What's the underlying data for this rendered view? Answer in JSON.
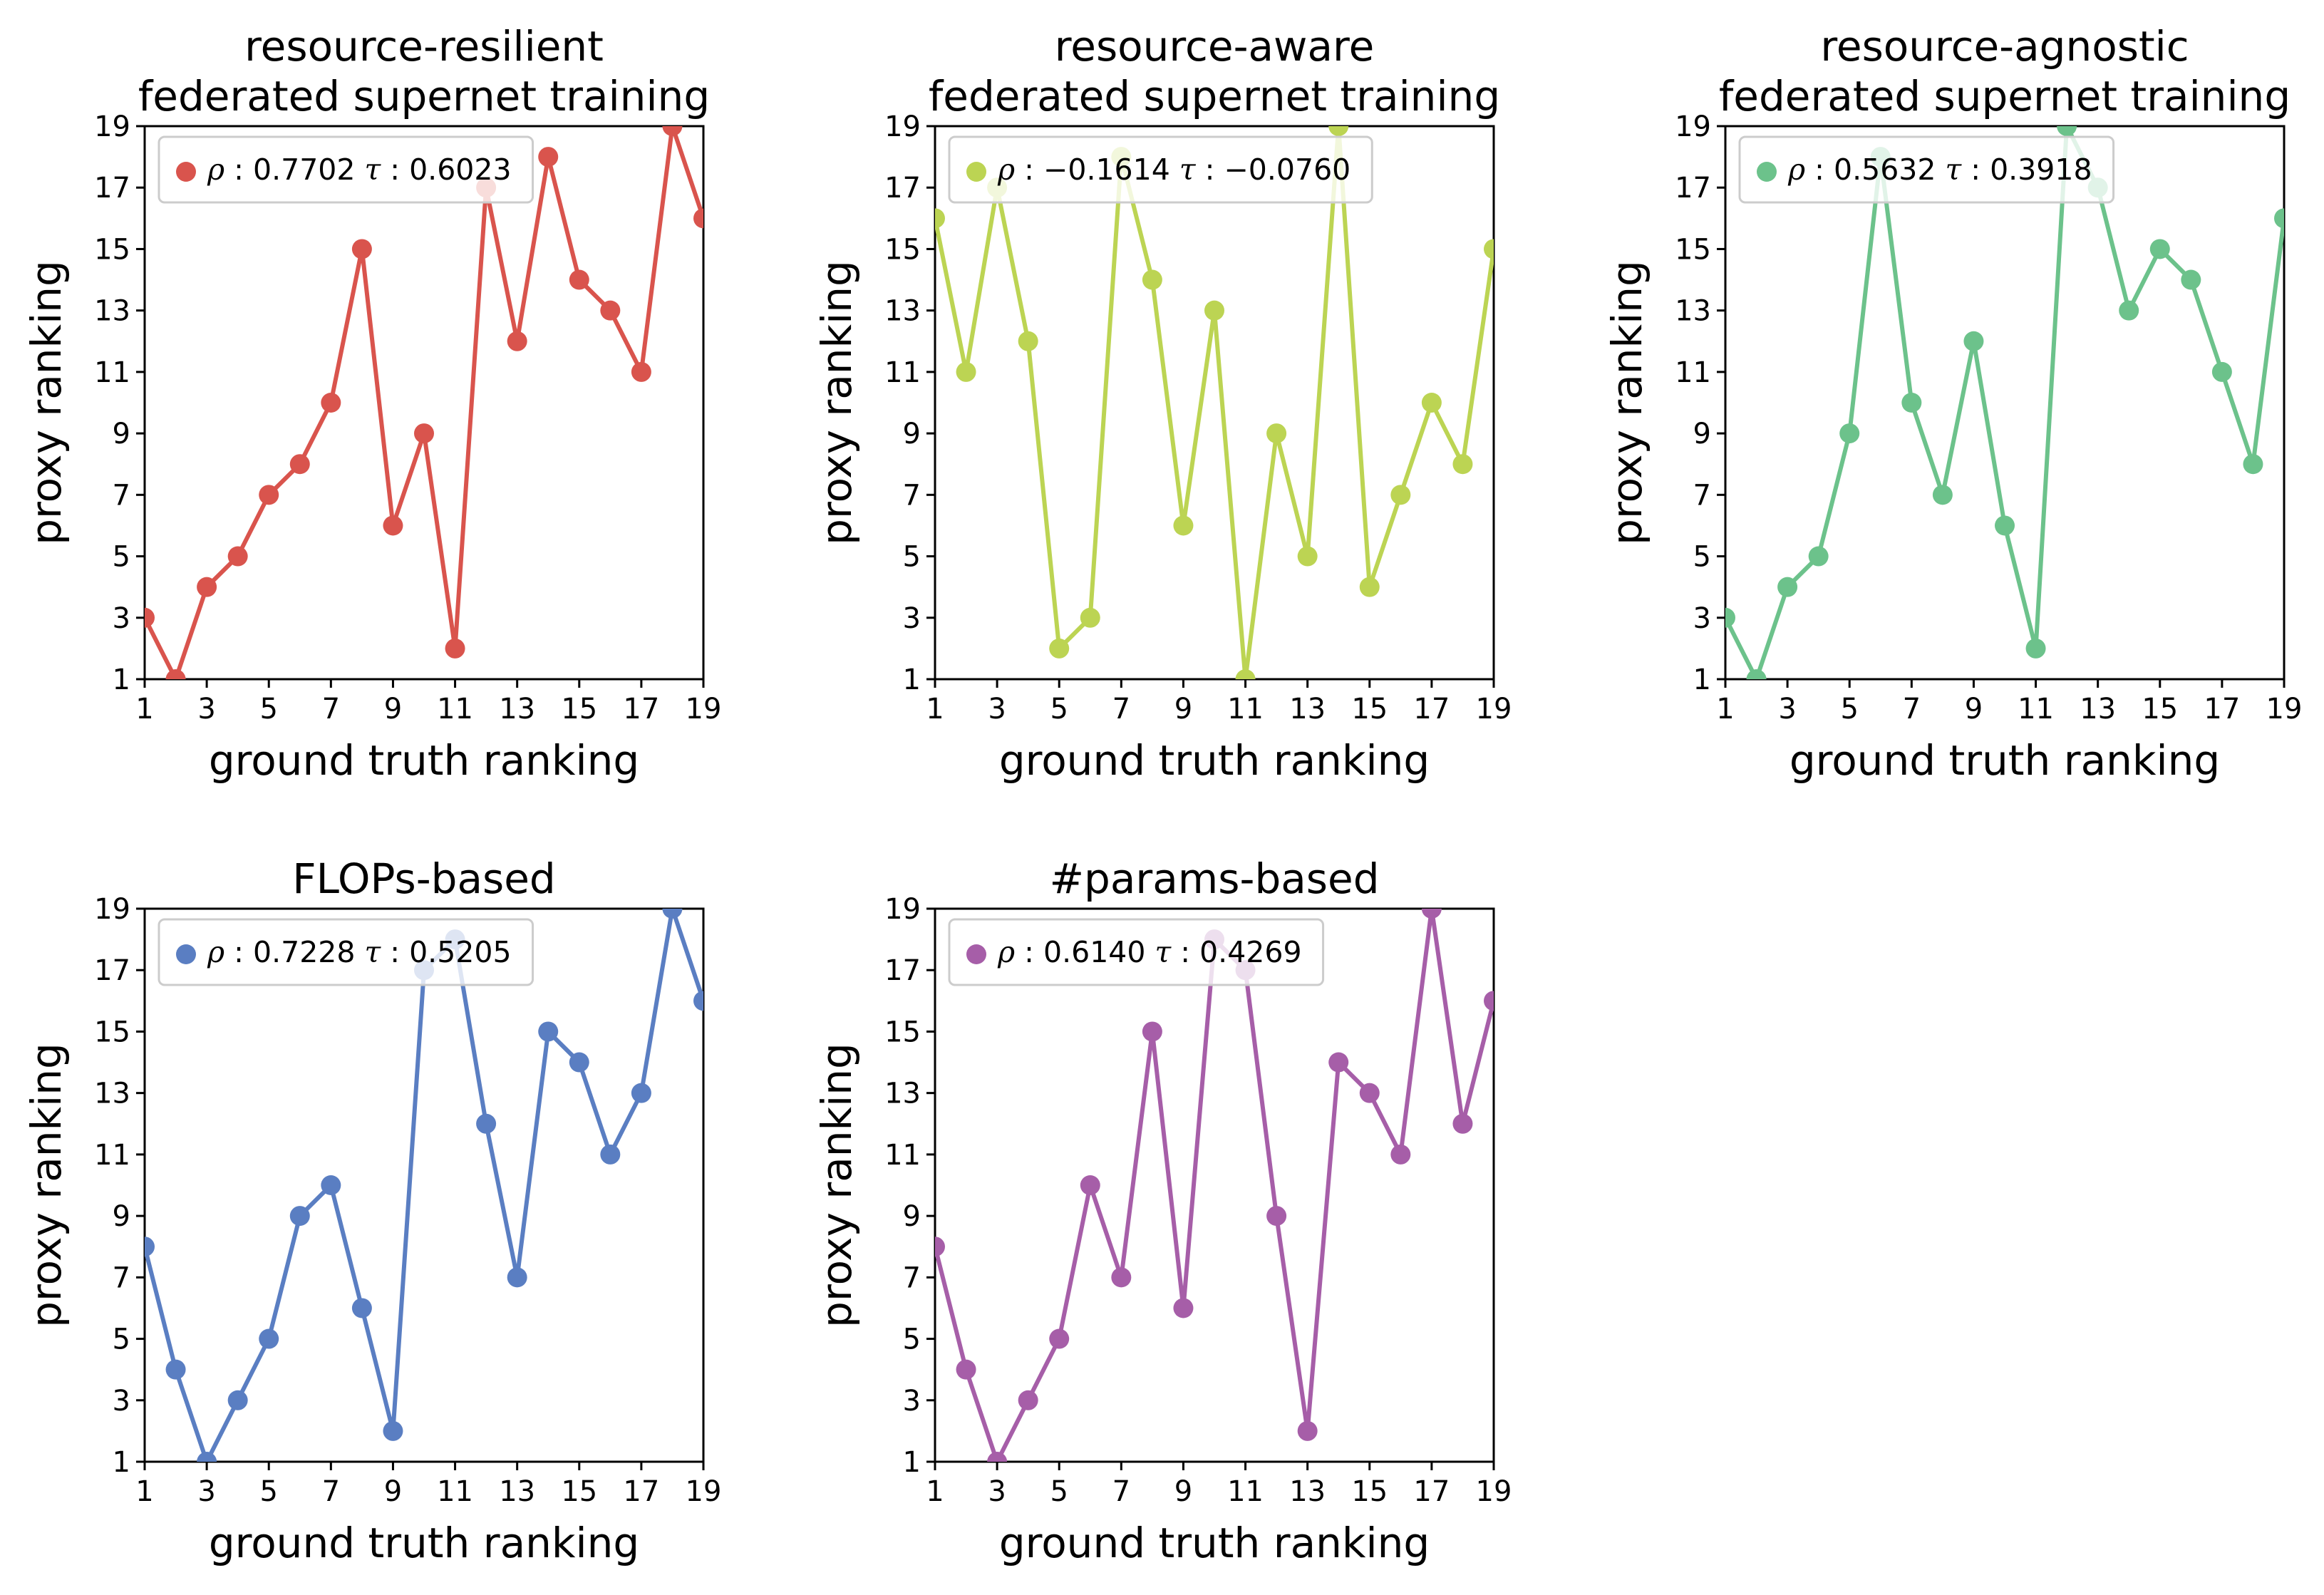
{
  "chart_data": [
    {
      "type": "line",
      "title": [
        "resource-resilient",
        "federated supernet training"
      ],
      "xlabel": "ground truth ranking",
      "ylabel": "proxy ranking",
      "color": "#d9544d",
      "x": [
        1,
        2,
        3,
        4,
        5,
        6,
        7,
        8,
        9,
        10,
        11,
        12,
        13,
        14,
        15,
        16,
        17,
        18,
        19
      ],
      "y": [
        3,
        1,
        4,
        5,
        7,
        8,
        10,
        15,
        6,
        9,
        2,
        17,
        12,
        18,
        14,
        13,
        11,
        19,
        16
      ],
      "xlim": [
        1,
        19
      ],
      "ylim": [
        1,
        19
      ],
      "xticks": [
        "1",
        "3",
        "5",
        "7",
        "9",
        "11",
        "13",
        "15",
        "17",
        "19"
      ],
      "yticks": [
        "1",
        "3",
        "5",
        "7",
        "9",
        "11",
        "13",
        "15",
        "17",
        "19"
      ],
      "legend": {
        "rho_label": "ρ",
        "rho": "0.7702",
        "tau_label": "τ",
        "tau": "0.6023"
      }
    },
    {
      "type": "line",
      "title": [
        "resource-aware",
        "federated supernet training"
      ],
      "xlabel": "ground truth ranking",
      "ylabel": "proxy ranking",
      "color": "#bcd453",
      "x": [
        1,
        2,
        3,
        4,
        5,
        6,
        7,
        8,
        9,
        10,
        11,
        12,
        13,
        14,
        15,
        16,
        17,
        18,
        19
      ],
      "y": [
        16,
        11,
        17,
        12,
        2,
        3,
        18,
        14,
        6,
        13,
        1,
        9,
        5,
        19,
        4,
        7,
        10,
        8,
        15
      ],
      "xlim": [
        1,
        19
      ],
      "ylim": [
        1,
        19
      ],
      "xticks": [
        "1",
        "3",
        "5",
        "7",
        "9",
        "11",
        "13",
        "15",
        "17",
        "19"
      ],
      "yticks": [
        "1",
        "3",
        "5",
        "7",
        "9",
        "11",
        "13",
        "15",
        "17",
        "19"
      ],
      "legend": {
        "rho_label": "ρ",
        "rho": "−0.1614",
        "tau_label": "τ",
        "tau": "−0.0760"
      }
    },
    {
      "type": "line",
      "title": [
        "resource-agnostic",
        "federated supernet training"
      ],
      "xlabel": "ground truth ranking",
      "ylabel": "proxy ranking",
      "color": "#6cc28b",
      "x": [
        1,
        2,
        3,
        4,
        5,
        6,
        7,
        8,
        9,
        10,
        11,
        12,
        13,
        14,
        15,
        16,
        17,
        18,
        19
      ],
      "y": [
        3,
        1,
        4,
        5,
        9,
        18,
        10,
        7,
        12,
        6,
        2,
        19,
        17,
        13,
        15,
        14,
        11,
        8,
        16
      ],
      "xlim": [
        1,
        19
      ],
      "ylim": [
        1,
        19
      ],
      "xticks": [
        "1",
        "3",
        "5",
        "7",
        "9",
        "11",
        "13",
        "15",
        "17",
        "19"
      ],
      "yticks": [
        "1",
        "3",
        "5",
        "7",
        "9",
        "11",
        "13",
        "15",
        "17",
        "19"
      ],
      "legend": {
        "rho_label": "ρ",
        "rho": "0.5632",
        "tau_label": "τ",
        "tau": "0.3918"
      }
    },
    {
      "type": "line",
      "title": [
        "FLOPs-based"
      ],
      "xlabel": "ground truth ranking",
      "ylabel": "proxy ranking",
      "color": "#5a7ec2",
      "x": [
        1,
        2,
        3,
        4,
        5,
        6,
        7,
        8,
        9,
        10,
        11,
        12,
        13,
        14,
        15,
        16,
        17,
        18,
        19
      ],
      "y": [
        8,
        4,
        1,
        3,
        5,
        9,
        10,
        6,
        2,
        17,
        18,
        12,
        7,
        15,
        14,
        11,
        13,
        19,
        16
      ],
      "xlim": [
        1,
        19
      ],
      "ylim": [
        1,
        19
      ],
      "xticks": [
        "1",
        "3",
        "5",
        "7",
        "9",
        "11",
        "13",
        "15",
        "17",
        "19"
      ],
      "yticks": [
        "1",
        "3",
        "5",
        "7",
        "9",
        "11",
        "13",
        "15",
        "17",
        "19"
      ],
      "legend": {
        "rho_label": "ρ",
        "rho": "0.7228",
        "tau_label": "τ",
        "tau": "0.5205"
      }
    },
    {
      "type": "line",
      "title": [
        "#params-based"
      ],
      "xlabel": "ground truth ranking",
      "ylabel": "proxy ranking",
      "color": "#a65ea8",
      "x": [
        1,
        2,
        3,
        4,
        5,
        6,
        7,
        8,
        9,
        10,
        11,
        12,
        13,
        14,
        15,
        16,
        17,
        18,
        19
      ],
      "y": [
        8,
        4,
        1,
        3,
        5,
        10,
        7,
        15,
        6,
        18,
        17,
        9,
        2,
        14,
        13,
        11,
        19,
        12,
        16
      ],
      "xlim": [
        1,
        19
      ],
      "ylim": [
        1,
        19
      ],
      "xticks": [
        "1",
        "3",
        "5",
        "7",
        "9",
        "11",
        "13",
        "15",
        "17",
        "19"
      ],
      "yticks": [
        "1",
        "3",
        "5",
        "7",
        "9",
        "11",
        "13",
        "15",
        "17",
        "19"
      ],
      "legend": {
        "rho_label": "ρ",
        "rho": "0.6140",
        "tau_label": "τ",
        "tau": "0.4269"
      }
    }
  ]
}
